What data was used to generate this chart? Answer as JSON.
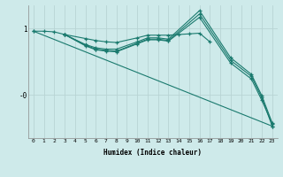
{
  "xlabel": "Humidex (Indice chaleur)",
  "bg_color": "#ceeaea",
  "line_color": "#1a7a6e",
  "grid_color": "#b8d4d4",
  "xlim": [
    -0.5,
    23.5
  ],
  "ylim": [
    -0.65,
    1.35
  ],
  "yticks": [
    0,
    1
  ],
  "ytick_labels": [
    "-0",
    "1"
  ],
  "xticks": [
    0,
    1,
    2,
    3,
    4,
    5,
    6,
    7,
    8,
    9,
    10,
    11,
    12,
    13,
    14,
    15,
    16,
    17,
    18,
    19,
    20,
    21,
    22,
    23
  ],
  "lines": [
    {
      "x": [
        0,
        1,
        2,
        3,
        5,
        6,
        7,
        8,
        10,
        11,
        12,
        13,
        14,
        15,
        16,
        17
      ],
      "y": [
        0.96,
        0.96,
        0.95,
        0.91,
        0.85,
        0.82,
        0.8,
        0.79,
        0.86,
        0.9,
        0.9,
        0.9,
        0.91,
        0.92,
        0.93,
        0.8
      ]
    },
    {
      "x": [
        3,
        5,
        6,
        7,
        8,
        10,
        11,
        12,
        13,
        16,
        19,
        21,
        22,
        23
      ],
      "y": [
        0.91,
        0.75,
        0.69,
        0.67,
        0.66,
        0.78,
        0.84,
        0.84,
        0.82,
        1.22,
        0.52,
        0.28,
        -0.04,
        -0.47
      ]
    },
    {
      "x": [
        3,
        5,
        6,
        7,
        8,
        10,
        11,
        12,
        13,
        16,
        19,
        21,
        22,
        23
      ],
      "y": [
        0.91,
        0.74,
        0.68,
        0.66,
        0.65,
        0.77,
        0.83,
        0.83,
        0.81,
        1.17,
        0.48,
        0.24,
        -0.08,
        -0.43
      ]
    },
    {
      "x": [
        3,
        5,
        6,
        7,
        8,
        10,
        11,
        12,
        13,
        16,
        19,
        21,
        22,
        23
      ],
      "y": [
        0.91,
        0.76,
        0.71,
        0.69,
        0.69,
        0.8,
        0.86,
        0.86,
        0.84,
        1.27,
        0.56,
        0.31,
        -0.01,
        -0.42
      ]
    },
    {
      "x": [
        0,
        23
      ],
      "y": [
        0.96,
        -0.47
      ]
    }
  ]
}
